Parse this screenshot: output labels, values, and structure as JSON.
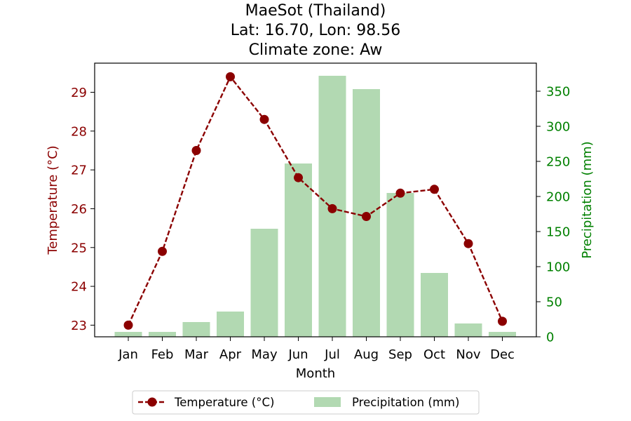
{
  "chart_data": {
    "type": "bar+line",
    "title": [
      "MaeSot (Thailand)",
      "Lat: 16.70, Lon: 98.56",
      "Climate zone: Aw"
    ],
    "xlabel": "Month",
    "categories": [
      "Jan",
      "Feb",
      "Mar",
      "Apr",
      "May",
      "Jun",
      "Jul",
      "Aug",
      "Sep",
      "Oct",
      "Nov",
      "Dec"
    ],
    "temperature": {
      "name": "Temperature (°C)",
      "axis_label": "Temperature (°C)",
      "values": [
        23.0,
        24.9,
        27.5,
        29.4,
        28.3,
        26.8,
        26.0,
        25.8,
        26.4,
        26.5,
        25.1,
        23.1
      ],
      "ylim": [
        22.7,
        29.75
      ],
      "ticks": [
        23,
        24,
        25,
        26,
        27,
        28,
        29
      ],
      "color": "#8b0000",
      "line_style": "dashed",
      "marker": "circle"
    },
    "precipitation": {
      "name": "Precipitation (mm)",
      "axis_label": "Precipitation (mm)",
      "values": [
        7,
        7,
        21,
        36,
        154,
        247,
        372,
        353,
        205,
        91,
        19,
        7
      ],
      "ylim": [
        0,
        390
      ],
      "ticks": [
        0,
        50,
        100,
        150,
        200,
        250,
        300,
        350
      ],
      "color": "#b2d9b2",
      "axis_color": "#008000"
    },
    "legend": {
      "position": "bottom-center"
    },
    "grid": false
  }
}
